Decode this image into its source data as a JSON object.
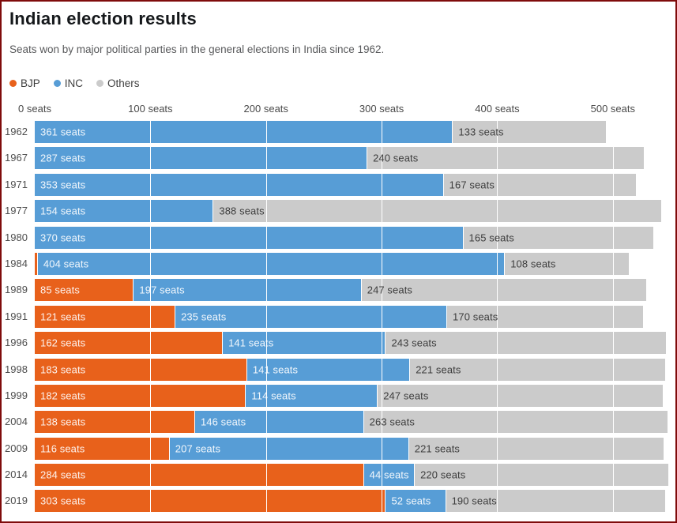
{
  "page": {
    "title": "Indian election results",
    "subtitle": "Seats won by major political parties in the general elections in India since 1962."
  },
  "colors": {
    "bjp": "#e8611b",
    "inc": "#579dd6",
    "others": "#cbcbcb",
    "frame_border": "#7f0b0b"
  },
  "legend": [
    {
      "label": "BJP",
      "color": "#e8611b"
    },
    {
      "label": "INC",
      "color": "#579dd6"
    },
    {
      "label": "Others",
      "color": "#cbcbcb"
    }
  ],
  "chart_data": {
    "type": "bar",
    "orientation": "horizontal",
    "stacked": true,
    "title": "Indian election results",
    "unit_suffix": " seats",
    "categories": [
      "1962",
      "1967",
      "1971",
      "1977",
      "1980",
      "1984",
      "1989",
      "1991",
      "1996",
      "1998",
      "1999",
      "2004",
      "2009",
      "2014",
      "2019"
    ],
    "series": [
      {
        "name": "BJP",
        "color": "#e8611b",
        "values": [
          0,
          0,
          0,
          0,
          0,
          2,
          85,
          121,
          162,
          183,
          182,
          138,
          116,
          284,
          303
        ],
        "labels": [
          "",
          "",
          "",
          "",
          "",
          "",
          "85 seats",
          "121 seats",
          "162 seats",
          "183 seats",
          "182 seats",
          "138 seats",
          "116 seats",
          "284 seats",
          "303 seats"
        ]
      },
      {
        "name": "INC",
        "color": "#579dd6",
        "values": [
          361,
          287,
          353,
          154,
          370,
          404,
          197,
          235,
          141,
          141,
          114,
          146,
          207,
          44,
          52
        ],
        "labels": [
          "361 seats",
          "287 seats",
          "353 seats",
          "154 seats",
          "370 seats",
          "404 seats",
          "197 seats",
          "235 seats",
          "141 seats",
          "141 seats",
          "114 seats",
          "146 seats",
          "207 seats",
          "44 seats",
          "52 seats"
        ]
      },
      {
        "name": "Others",
        "color": "#cbcbcb",
        "values": [
          133,
          240,
          167,
          388,
          165,
          108,
          247,
          170,
          243,
          221,
          247,
          263,
          221,
          220,
          190
        ],
        "labels": [
          "133 seats",
          "240 seats",
          "167 seats",
          "388 seats",
          "165 seats",
          "108 seats",
          "247 seats",
          "170 seats",
          "243 seats",
          "221 seats",
          "247 seats",
          "263 seats",
          "221 seats",
          "220 seats",
          "190 seats"
        ]
      }
    ],
    "x_axis": {
      "ticks": [
        {
          "value": 0,
          "label": "0 seats"
        },
        {
          "value": 100,
          "label": "100 seats"
        },
        {
          "value": 200,
          "label": "200 seats"
        },
        {
          "value": 300,
          "label": "300 seats"
        },
        {
          "value": 400,
          "label": "400 seats"
        },
        {
          "value": 500,
          "label": "500 seats"
        }
      ],
      "max": 550
    },
    "gridlines_at": [
      100,
      200,
      300,
      400,
      500
    ],
    "legend_position": "top-left"
  }
}
